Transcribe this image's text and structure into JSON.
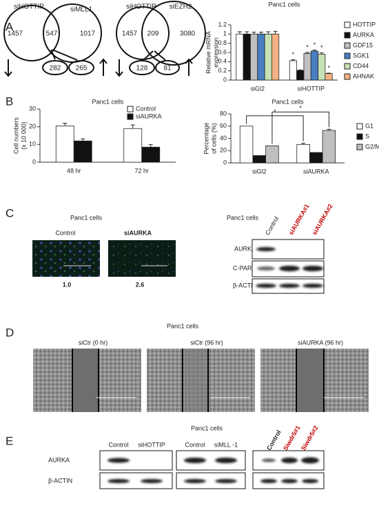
{
  "panel_labels": [
    "A",
    "B",
    "C",
    "D",
    "E"
  ],
  "venn": [
    {
      "sets": [
        "siHOTTIP",
        "siMLL1"
      ],
      "counts": [
        1457,
        547,
        1017
      ],
      "down": 282,
      "up": 265
    },
    {
      "sets": [
        "siHOTTIP",
        "siEZH2"
      ],
      "counts": [
        1457,
        209,
        3080
      ],
      "down": 128,
      "up": 81
    }
  ],
  "chart_data": [
    {
      "type": "bar",
      "title": "Panc1 cells",
      "y_label": [
        "Relative mRNA",
        "expression"
      ],
      "categories": [
        "siGl2",
        "siHOTTIP"
      ],
      "series": [
        {
          "name": "HOTTIP",
          "color": "#ffffff",
          "values": [
            1,
            0.42
          ],
          "errors": [
            0.05,
            0.02
          ]
        },
        {
          "name": "AURKA",
          "color": "#111111",
          "values": [
            1,
            0.21
          ],
          "errors": [
            0.05,
            0.01
          ]
        },
        {
          "name": "GDF15",
          "color": "#bfbfbf",
          "values": [
            1,
            0.58
          ],
          "errors": [
            0.04,
            0.02
          ]
        },
        {
          "name": "SGK1",
          "color": "#4a7ec2",
          "values": [
            1,
            0.63
          ],
          "errors": [
            0.04,
            0.02
          ]
        },
        {
          "name": "CD44",
          "color": "#c6e0b4",
          "values": [
            1,
            0.56
          ],
          "errors": [
            0.05,
            0.03
          ]
        },
        {
          "name": "AHNAK",
          "color": "#f4b183",
          "values": [
            1,
            0.14
          ],
          "errors": [
            0.06,
            0.01
          ]
        }
      ],
      "annotations": [
        {
          "text": "*",
          "category": "siHOTTIP",
          "series": "HOTTIP"
        },
        {
          "text": "*",
          "category": "siHOTTIP",
          "series": "GDF15"
        },
        {
          "text": "*",
          "category": "siHOTTIP",
          "series": "SGK1"
        },
        {
          "text": "*",
          "category": "siHOTTIP",
          "series": "CD44"
        },
        {
          "text": "*",
          "category": "siHOTTIP",
          "series": "AHNAK"
        }
      ],
      "ylim": [
        0,
        1.2
      ],
      "yticks": [
        0,
        0.2,
        0.4,
        0.6,
        0.8,
        1,
        1.2
      ],
      "legend": "right"
    },
    {
      "type": "bar",
      "title": "Panc1 cells",
      "y_label": [
        "Cell  numbers",
        "(x 10 000)"
      ],
      "categories": [
        "48 hr",
        "72 hr"
      ],
      "series": [
        {
          "name": "Control",
          "color": "#ffffff",
          "values": [
            20.5,
            19
          ],
          "errors": [
            1.5,
            2
          ]
        },
        {
          "name": "siAURKA",
          "color": "#111111",
          "values": [
            12,
            8.5
          ],
          "errors": [
            1.2,
            1.5
          ]
        }
      ],
      "ylim": [
        0,
        30
      ],
      "yticks": [
        0,
        10,
        20,
        30
      ],
      "legend": "top right"
    },
    {
      "type": "bar",
      "title": "Panc1 cells",
      "y_label": [
        "Percentage",
        "of cells (%)"
      ],
      "categories": [
        "siGl2",
        "siAURKA"
      ],
      "series": [
        {
          "name": "G1",
          "color": "#ffffff",
          "values": [
            60,
            30
          ],
          "errors": [
            0,
            2
          ]
        },
        {
          "name": "S",
          "color": "#111111",
          "values": [
            12,
            17
          ],
          "errors": [
            0,
            0
          ]
        },
        {
          "name": "G2/M",
          "color": "#bfbfbf",
          "values": [
            28,
            53
          ],
          "errors": [
            0,
            2
          ]
        }
      ],
      "brackets": [
        {
          "text": "*",
          "series": "G1"
        },
        {
          "text": "*",
          "series": "G2/M"
        }
      ],
      "ylim": [
        0,
        80
      ],
      "yticks": [
        0,
        20,
        40,
        60,
        80
      ],
      "legend": "right"
    }
  ],
  "immunofluorescence": {
    "title": "Panc1 cells",
    "labels": [
      "Control",
      "siAURKA"
    ],
    "ratios": [
      "1.0",
      "2.6"
    ]
  },
  "blot_c": {
    "title": "Panc1 cells",
    "lanes": [
      "Control",
      "siAURKA#1",
      "siAURKA#2"
    ],
    "rows": [
      "AURKA",
      "C-PARP",
      "β-ACTIN"
    ]
  },
  "migration": {
    "title": "Panc1 cells",
    "labels": [
      "siCtr    (0 hr)",
      "siCtr    (96 hr)",
      "siAURKA     (96 hr)"
    ]
  },
  "blot_e": {
    "title": "Panc1 cells",
    "rows": [
      "AURKA",
      "β-ACTIN"
    ],
    "groups": [
      {
        "lanes": [
          "Control",
          "siHOTTIP"
        ]
      },
      {
        "lanes": [
          "Control",
          "siMLL  -1"
        ]
      },
      {
        "lanes": [
          "Control",
          "Siwdr5#1",
          "Siwdr5#2"
        ]
      }
    ]
  }
}
